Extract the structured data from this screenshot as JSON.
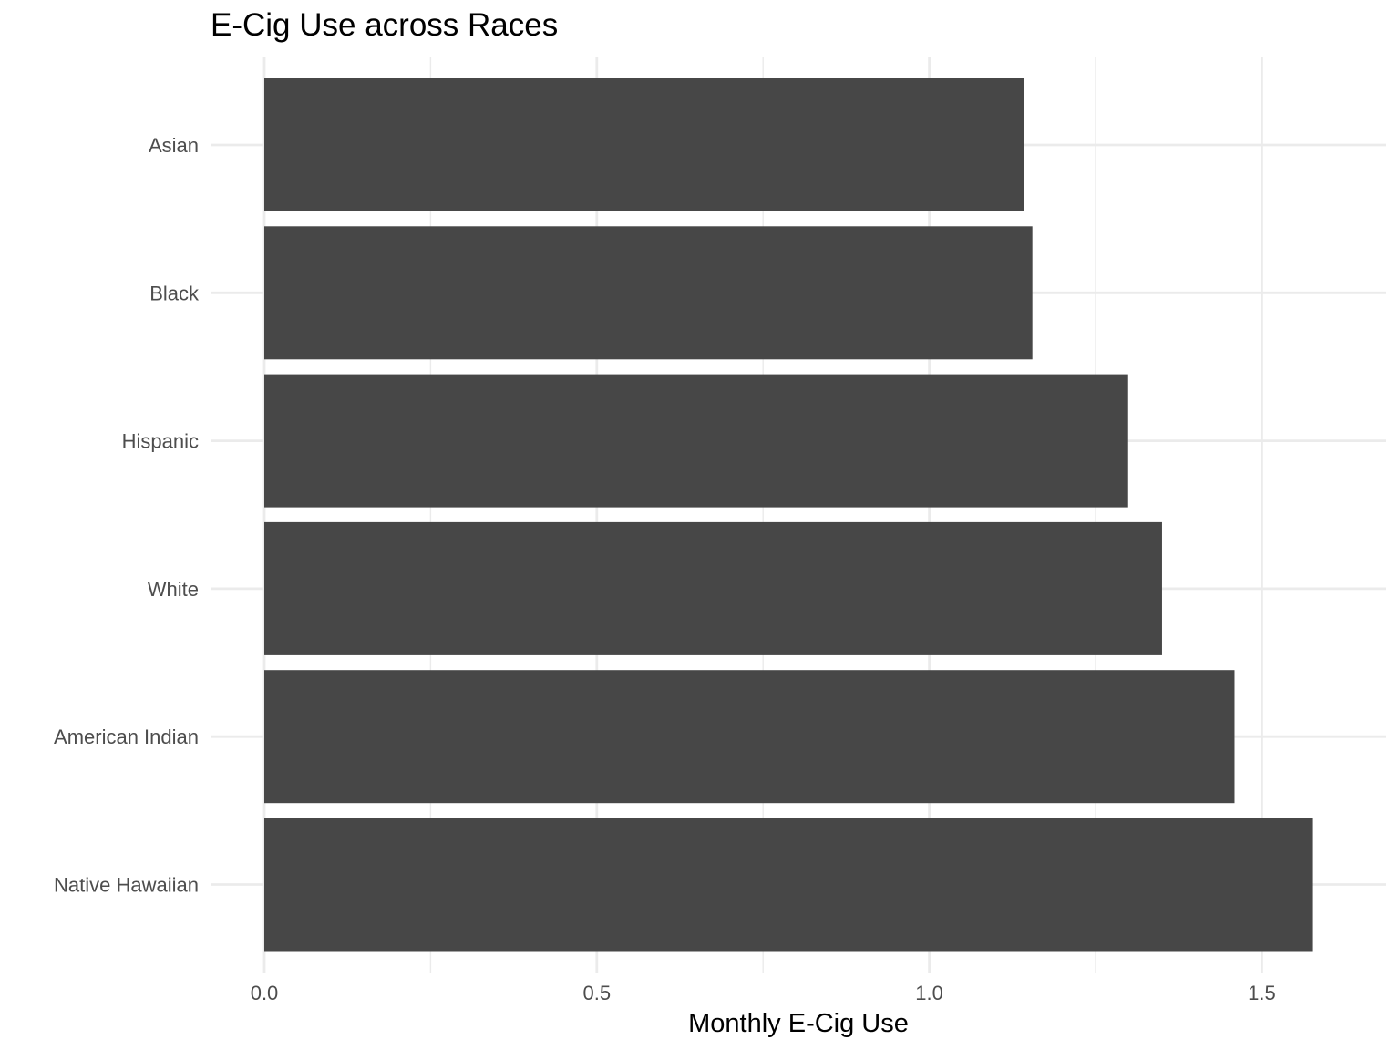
{
  "chart_data": {
    "type": "bar",
    "orientation": "horizontal",
    "title": "E-Cig Use across Races",
    "xlabel": "Monthly E-Cig Use",
    "ylabel": "",
    "categories": [
      "Asian",
      "Black",
      "Hispanic",
      "White",
      "American Indian",
      "Native Hawaiian"
    ],
    "values": [
      1.143,
      1.155,
      1.299,
      1.35,
      1.459,
      1.577
    ],
    "xlim": [
      0,
      1.69
    ],
    "x_ticks": [
      {
        "value": 0.0,
        "label": "0.0"
      },
      {
        "value": 0.5,
        "label": "0.5"
      },
      {
        "value": 1.0,
        "label": "1.0"
      },
      {
        "value": 1.5,
        "label": "1.5"
      }
    ],
    "x_minor_ticks": [
      0.25,
      0.75,
      1.25
    ],
    "grid": true,
    "legend": "none",
    "bar_color": "#474747",
    "grid_color": "#ebebeb"
  }
}
